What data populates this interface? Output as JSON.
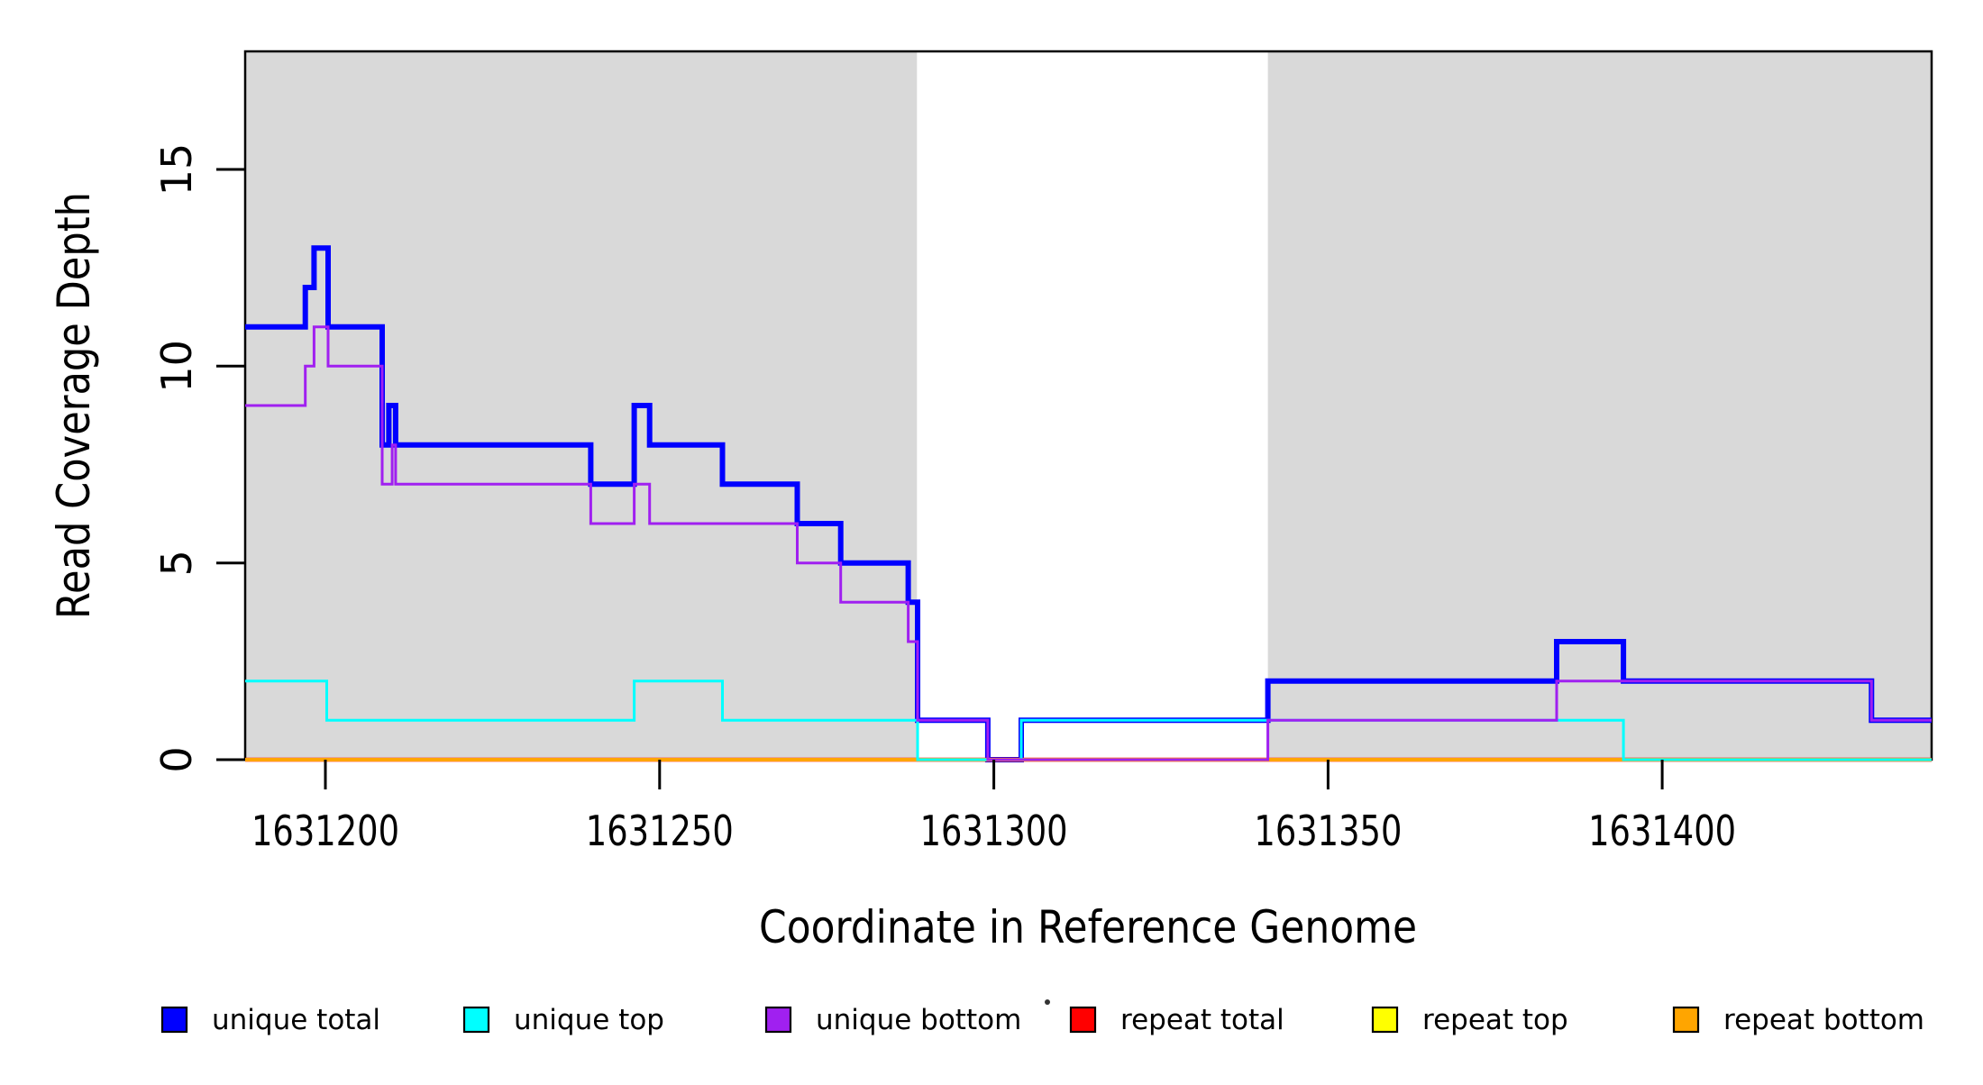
{
  "chart_data": {
    "type": "line",
    "step": true,
    "title": "",
    "xlabel": "Coordinate in Reference Genome",
    "ylabel": "Read Coverage Depth",
    "xlim": [
      1631188,
      1631440.3
    ],
    "ylim": [
      0,
      18
    ],
    "x_ticks": [
      1631200,
      1631250,
      1631300,
      1631350,
      1631400
    ],
    "y_ticks": [
      0,
      5,
      10,
      15
    ],
    "grid": false,
    "legend_position": "bottom",
    "background_color": "#ffffff",
    "shaded_region_color": "#d9d9d9",
    "shaded_regions": [
      {
        "x0": 1631188,
        "x1": 1631288.5
      },
      {
        "x0": 1631341,
        "x1": 1631440.3
      }
    ],
    "series": [
      {
        "name": "unique total",
        "color": "#0000ff",
        "width": 6,
        "steps": [
          [
            1631188,
            11
          ],
          [
            1631197,
            12
          ],
          [
            1631198.3,
            13
          ],
          [
            1631200.4,
            11
          ],
          [
            1631208.5,
            8
          ],
          [
            1631209.5,
            9
          ],
          [
            1631210.5,
            8
          ],
          [
            1631239.7,
            7
          ],
          [
            1631246.2,
            9
          ],
          [
            1631248.5,
            8
          ],
          [
            1631259.4,
            7
          ],
          [
            1631270.6,
            6
          ],
          [
            1631277.1,
            5
          ],
          [
            1631287.2,
            4
          ],
          [
            1631288.6,
            1
          ],
          [
            1631299.1,
            0
          ],
          [
            1631304.1,
            1
          ],
          [
            1631341,
            2
          ],
          [
            1631384.2,
            3
          ],
          [
            1631394.2,
            2
          ],
          [
            1631431.3,
            1
          ]
        ]
      },
      {
        "name": "repeat total",
        "color": "#ff0000",
        "width": 4.5,
        "steps": [
          [
            1631188,
            0
          ]
        ]
      },
      {
        "name": "repeat top",
        "color": "#ffff00",
        "width": 3,
        "steps": [
          [
            1631188,
            0
          ]
        ]
      },
      {
        "name": "repeat bottom",
        "color": "#ffa500",
        "width": 4,
        "steps": [
          [
            1631188,
            0
          ]
        ]
      },
      {
        "name": "unique top",
        "color": "#00ffff",
        "width": 3,
        "steps": [
          [
            1631188,
            2
          ],
          [
            1631200.2,
            1
          ],
          [
            1631246.2,
            2
          ],
          [
            1631259.4,
            1
          ],
          [
            1631288.6,
            0
          ],
          [
            1631304.1,
            1
          ],
          [
            1631394.2,
            0
          ]
        ]
      },
      {
        "name": "unique bottom",
        "color": "#a020f0",
        "width": 3,
        "steps": [
          [
            1631188,
            9
          ],
          [
            1631197,
            10
          ],
          [
            1631198.3,
            11
          ],
          [
            1631200.4,
            10
          ],
          [
            1631208.5,
            7
          ],
          [
            1631210,
            8
          ],
          [
            1631210.5,
            7
          ],
          [
            1631239.7,
            6
          ],
          [
            1631246.2,
            7
          ],
          [
            1631248.5,
            6
          ],
          [
            1631270.6,
            5
          ],
          [
            1631277.1,
            4
          ],
          [
            1631287.2,
            3
          ],
          [
            1631288.6,
            1
          ],
          [
            1631299.1,
            0
          ],
          [
            1631341,
            1
          ],
          [
            1631384.2,
            2
          ],
          [
            1631431.3,
            1
          ]
        ]
      }
    ],
    "legend": [
      {
        "label": "unique total",
        "color": "#0000ff"
      },
      {
        "label": "unique top",
        "color": "#00ffff"
      },
      {
        "label": "unique bottom",
        "color": "#a020f0"
      },
      {
        "label": "repeat total",
        "color": "#ff0000"
      },
      {
        "label": "repeat top",
        "color": "#ffff00"
      },
      {
        "label": "repeat bottom",
        "color": "#ffa500"
      }
    ]
  }
}
